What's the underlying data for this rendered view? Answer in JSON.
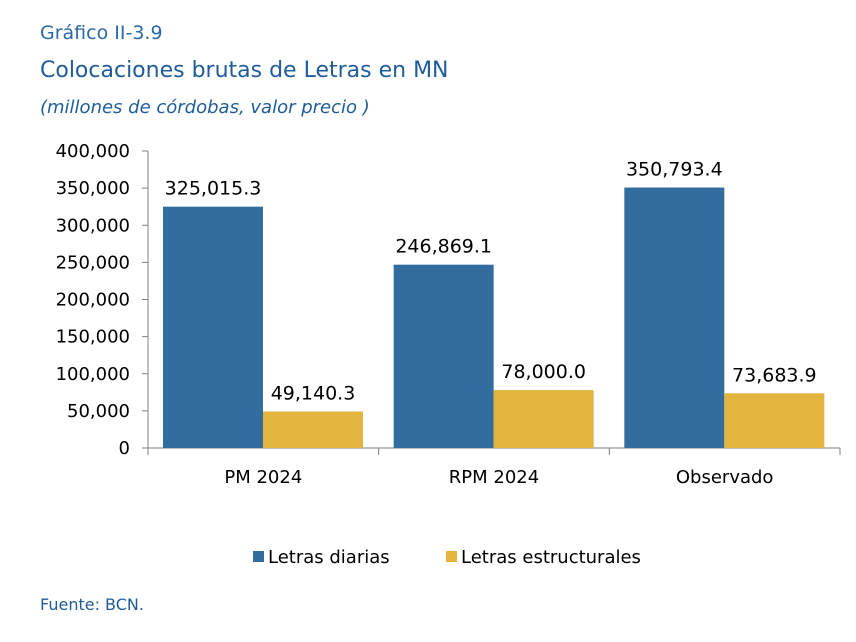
{
  "header": {
    "label": "Gráfico II-3.9",
    "title": "Colocaciones brutas de Letras en MN",
    "subtitle": "(millones de córdobas, valor precio )"
  },
  "footer": {
    "source": "Fuente: BCN."
  },
  "colors": {
    "series1": "#336d9d",
    "series2": "#e3b43e",
    "text": "#1f5c9a"
  },
  "chart_data": {
    "type": "bar",
    "categories": [
      "PM 2024",
      "RPM 2024",
      "Observado"
    ],
    "series": [
      {
        "name": "Letras diarias",
        "values": [
          325015.3,
          246869.1,
          350793.4
        ],
        "labels": [
          "325,015.3",
          "246,869.1",
          "350,793.4"
        ]
      },
      {
        "name": "Letras estructurales",
        "values": [
          49140.3,
          78000.0,
          73683.9
        ],
        "labels": [
          "49,140.3",
          "78,000.0",
          "73,683.9"
        ]
      }
    ],
    "ylim": [
      0,
      400000
    ],
    "yticks": [
      "0",
      "50,000",
      "100,000",
      "150,000",
      "200,000",
      "250,000",
      "300,000",
      "350,000",
      "400,000"
    ],
    "legend_position": "bottom",
    "grid": false
  }
}
